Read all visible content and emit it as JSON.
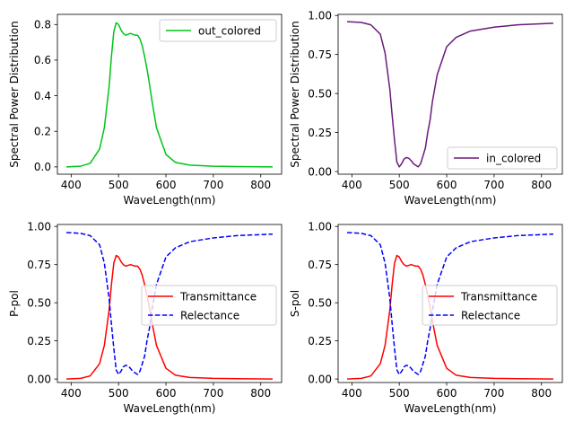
{
  "chart_data": [
    {
      "id": "top-left",
      "type": "line",
      "xlabel": "WaveLength(nm)",
      "ylabel": "Spectral Power Distribution",
      "xlim": [
        371,
        844
      ],
      "ylim": [
        -0.041,
        0.857
      ],
      "xticks": [
        400,
        500,
        600,
        700,
        800
      ],
      "yticks": [
        0.0,
        0.2,
        0.4,
        0.6,
        0.8
      ],
      "ytick_labels": [
        "0.0",
        "0.2",
        "0.4",
        "0.6",
        "0.8"
      ],
      "legend": {
        "position": "top-right"
      },
      "series": [
        {
          "name": "out_colored",
          "color": "#00c41a",
          "style": "solid",
          "x": [
            390,
            420,
            440,
            460,
            470,
            480,
            485,
            490,
            495,
            500,
            505,
            510,
            515,
            520,
            525,
            530,
            535,
            540,
            545,
            550,
            555,
            560,
            565,
            570,
            580,
            600,
            620,
            650,
            700,
            750,
            825
          ],
          "y": [
            0.0,
            0.004,
            0.02,
            0.1,
            0.22,
            0.45,
            0.62,
            0.76,
            0.81,
            0.8,
            0.77,
            0.75,
            0.74,
            0.745,
            0.75,
            0.745,
            0.74,
            0.74,
            0.72,
            0.68,
            0.62,
            0.55,
            0.47,
            0.38,
            0.22,
            0.07,
            0.025,
            0.01,
            0.004,
            0.002,
            0.0
          ]
        }
      ]
    },
    {
      "id": "top-right",
      "type": "line",
      "xlabel": "WaveLength(nm)",
      "ylabel": "Spectral Power Distribution",
      "xlim": [
        371,
        844
      ],
      "ylim": [
        -0.017,
        1.007
      ],
      "xticks": [
        400,
        500,
        600,
        700,
        800
      ],
      "yticks": [
        0.0,
        0.25,
        0.5,
        0.75,
        1.0
      ],
      "ytick_labels": [
        "0.00",
        "0.25",
        "0.50",
        "0.75",
        "1.00"
      ],
      "legend": {
        "position": "bottom-right"
      },
      "series": [
        {
          "name": "in_colored",
          "color": "#6a1b7a",
          "style": "solid",
          "x": [
            390,
            420,
            440,
            460,
            470,
            480,
            485,
            490,
            495,
            500,
            505,
            510,
            515,
            520,
            525,
            530,
            535,
            540,
            545,
            550,
            555,
            560,
            565,
            570,
            580,
            600,
            620,
            650,
            700,
            750,
            825
          ],
          "y": [
            0.96,
            0.955,
            0.94,
            0.88,
            0.76,
            0.53,
            0.36,
            0.2,
            0.06,
            0.03,
            0.05,
            0.08,
            0.09,
            0.085,
            0.07,
            0.05,
            0.04,
            0.03,
            0.05,
            0.1,
            0.15,
            0.25,
            0.33,
            0.45,
            0.62,
            0.8,
            0.86,
            0.9,
            0.925,
            0.94,
            0.95
          ]
        }
      ]
    },
    {
      "id": "bottom-left",
      "type": "line",
      "xlabel": "WaveLength(nm)",
      "ylabel": "P-pol",
      "xlim": [
        371,
        844
      ],
      "ylim": [
        -0.023,
        1.013
      ],
      "xticks": [
        400,
        500,
        600,
        700,
        800
      ],
      "yticks": [
        0.0,
        0.25,
        0.5,
        0.75,
        1.0
      ],
      "ytick_labels": [
        "0.00",
        "0.25",
        "0.50",
        "0.75",
        "1.00"
      ],
      "legend": {
        "position": "center-right"
      },
      "series": [
        {
          "name": "Transmittance",
          "color": "#ff0000",
          "style": "solid",
          "x": [
            390,
            420,
            440,
            460,
            470,
            480,
            485,
            490,
            495,
            500,
            505,
            510,
            515,
            520,
            525,
            530,
            535,
            540,
            545,
            550,
            555,
            560,
            565,
            570,
            580,
            600,
            620,
            650,
            700,
            750,
            825
          ],
          "y": [
            0.0,
            0.004,
            0.02,
            0.1,
            0.22,
            0.45,
            0.62,
            0.76,
            0.81,
            0.8,
            0.77,
            0.75,
            0.74,
            0.745,
            0.75,
            0.745,
            0.74,
            0.74,
            0.72,
            0.68,
            0.62,
            0.55,
            0.47,
            0.38,
            0.22,
            0.07,
            0.025,
            0.01,
            0.004,
            0.002,
            0.0
          ]
        },
        {
          "name": "Relectance",
          "color": "#0000ff",
          "style": "dashed",
          "x": [
            390,
            420,
            440,
            460,
            470,
            480,
            485,
            490,
            495,
            500,
            505,
            510,
            515,
            520,
            525,
            530,
            535,
            540,
            545,
            550,
            555,
            560,
            565,
            570,
            580,
            600,
            620,
            650,
            700,
            750,
            825
          ],
          "y": [
            0.96,
            0.955,
            0.94,
            0.88,
            0.76,
            0.53,
            0.36,
            0.2,
            0.06,
            0.03,
            0.05,
            0.08,
            0.09,
            0.085,
            0.07,
            0.05,
            0.04,
            0.03,
            0.05,
            0.1,
            0.15,
            0.25,
            0.33,
            0.45,
            0.62,
            0.8,
            0.86,
            0.9,
            0.925,
            0.94,
            0.95
          ]
        }
      ]
    },
    {
      "id": "bottom-right",
      "type": "line",
      "xlabel": "WaveLength(nm)",
      "ylabel": "S-pol",
      "xlim": [
        371,
        844
      ],
      "ylim": [
        -0.023,
        1.013
      ],
      "xticks": [
        400,
        500,
        600,
        700,
        800
      ],
      "yticks": [
        0.0,
        0.25,
        0.5,
        0.75,
        1.0
      ],
      "ytick_labels": [
        "0.00",
        "0.25",
        "0.50",
        "0.75",
        "1.00"
      ],
      "legend": {
        "position": "center-right"
      },
      "series": [
        {
          "name": "Transmittance",
          "color": "#ff0000",
          "style": "solid",
          "x": [
            390,
            420,
            440,
            460,
            470,
            480,
            485,
            490,
            495,
            500,
            505,
            510,
            515,
            520,
            525,
            530,
            535,
            540,
            545,
            550,
            555,
            560,
            565,
            570,
            580,
            600,
            620,
            650,
            700,
            750,
            825
          ],
          "y": [
            0.0,
            0.004,
            0.02,
            0.1,
            0.22,
            0.45,
            0.62,
            0.76,
            0.81,
            0.8,
            0.77,
            0.75,
            0.74,
            0.745,
            0.75,
            0.745,
            0.74,
            0.74,
            0.72,
            0.68,
            0.62,
            0.55,
            0.47,
            0.38,
            0.22,
            0.07,
            0.025,
            0.01,
            0.004,
            0.002,
            0.0
          ]
        },
        {
          "name": "Relectance",
          "color": "#0000ff",
          "style": "dashed",
          "x": [
            390,
            420,
            440,
            460,
            470,
            480,
            485,
            490,
            495,
            500,
            505,
            510,
            515,
            520,
            525,
            530,
            535,
            540,
            545,
            550,
            555,
            560,
            565,
            570,
            580,
            600,
            620,
            650,
            700,
            750,
            825
          ],
          "y": [
            0.96,
            0.955,
            0.94,
            0.88,
            0.76,
            0.53,
            0.36,
            0.2,
            0.06,
            0.03,
            0.05,
            0.08,
            0.09,
            0.085,
            0.07,
            0.05,
            0.04,
            0.03,
            0.05,
            0.1,
            0.15,
            0.25,
            0.33,
            0.45,
            0.62,
            0.8,
            0.86,
            0.9,
            0.925,
            0.94,
            0.95
          ]
        }
      ]
    }
  ]
}
